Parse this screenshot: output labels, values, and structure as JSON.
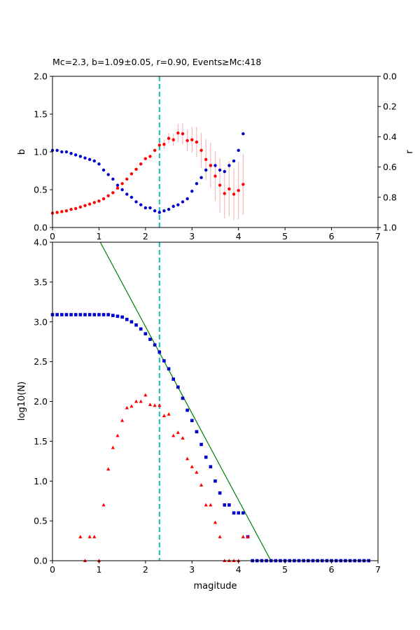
{
  "chart_data": [
    {
      "type": "scatter",
      "title": "Mc=2.3, b=1.09±0.05, r=0.90, Events≥Mc:418",
      "xlabel": "",
      "ylabel": "b",
      "ylabel_right": "r",
      "xlim": [
        0,
        7
      ],
      "ylim": [
        0,
        2
      ],
      "ylim_right": [
        1,
        0
      ],
      "xticks": [
        "0",
        "1",
        "2",
        "3",
        "4",
        "5",
        "6",
        "7"
      ],
      "yticks": [
        "0.0",
        "0.5",
        "1.0",
        "1.5",
        "2.0"
      ],
      "yticks_right": [
        "0.0",
        "0.2",
        "0.4",
        "0.6",
        "0.8",
        "1.0"
      ],
      "grid": false,
      "mc_line": 2.3,
      "colors": {
        "b": "#ff0000",
        "r": "#0000cc",
        "errorbar": "#f4b8b8",
        "mc": "#1fc4b4"
      },
      "series": [
        {
          "axis": "left",
          "x": [
            0.0,
            0.1,
            0.2,
            0.3,
            0.4,
            0.5,
            0.6,
            0.7,
            0.8,
            0.9,
            1.0,
            1.1,
            1.2,
            1.3,
            1.4,
            1.5,
            1.6,
            1.7,
            1.8,
            1.9,
            2.0,
            2.1,
            2.2,
            2.3,
            2.4,
            2.5,
            2.6,
            2.7,
            2.8,
            2.9,
            3.0,
            3.1,
            3.2,
            3.3,
            3.4,
            3.5,
            3.6,
            3.7,
            3.8,
            3.9,
            4.0,
            4.1
          ],
          "values": [
            0.19,
            0.2,
            0.21,
            0.22,
            0.24,
            0.25,
            0.27,
            0.29,
            0.31,
            0.33,
            0.35,
            0.38,
            0.42,
            0.46,
            0.52,
            0.58,
            0.64,
            0.71,
            0.77,
            0.84,
            0.91,
            0.94,
            1.02,
            1.09,
            1.1,
            1.18,
            1.16,
            1.25,
            1.24,
            1.15,
            1.16,
            1.13,
            1.02,
            0.9,
            0.82,
            0.68,
            0.56,
            0.45,
            0.51,
            0.44,
            0.49,
            0.57
          ],
          "err": [
            0,
            0,
            0,
            0,
            0,
            0,
            0,
            0,
            0,
            0,
            0,
            0,
            0,
            0,
            0,
            0,
            0,
            0,
            0,
            0,
            0,
            0,
            0,
            0.05,
            0.06,
            0.07,
            0.08,
            0.12,
            0.14,
            0.14,
            0.17,
            0.2,
            0.23,
            0.27,
            0.3,
            0.33,
            0.36,
            0.33,
            0.36,
            0.34,
            0.38,
            0.4
          ]
        },
        {
          "axis": "right",
          "x": [
            0.0,
            0.1,
            0.2,
            0.3,
            0.4,
            0.5,
            0.6,
            0.7,
            0.8,
            0.9,
            1.0,
            1.1,
            1.2,
            1.3,
            1.4,
            1.5,
            1.6,
            1.7,
            1.8,
            1.9,
            2.0,
            2.1,
            2.2,
            2.3,
            2.4,
            2.5,
            2.6,
            2.7,
            2.8,
            2.9,
            3.0,
            3.1,
            3.2,
            3.3,
            3.4,
            3.5,
            3.6,
            3.7,
            3.8,
            3.9,
            4.0,
            4.1
          ],
          "values": [
            0.49,
            0.49,
            0.5,
            0.5,
            0.51,
            0.52,
            0.53,
            0.54,
            0.55,
            0.56,
            0.58,
            0.62,
            0.65,
            0.68,
            0.72,
            0.75,
            0.78,
            0.8,
            0.83,
            0.85,
            0.87,
            0.87,
            0.89,
            0.9,
            0.89,
            0.88,
            0.86,
            0.85,
            0.83,
            0.81,
            0.76,
            0.71,
            0.67,
            0.62,
            0.59,
            0.59,
            0.62,
            0.63,
            0.59,
            0.56,
            0.49,
            0.38
          ]
        }
      ]
    },
    {
      "type": "scatter",
      "title": "",
      "xlabel": "magitude",
      "ylabel": "log10(N)",
      "xlim": [
        0,
        7
      ],
      "ylim": [
        0,
        4
      ],
      "xticks": [
        "0",
        "1",
        "2",
        "3",
        "4",
        "5",
        "6",
        "7"
      ],
      "yticks": [
        "0.0",
        "0.5",
        "1.0",
        "1.5",
        "2.0",
        "2.5",
        "3.0",
        "3.5",
        "4.0"
      ],
      "grid": false,
      "mc_line": 2.3,
      "colors": {
        "cumulative": "#0000cc",
        "non_cumulative": "#ff0000",
        "fit": "#008000",
        "mc": "#1fc4b4"
      },
      "fit_line": {
        "a": 5.12,
        "b": 1.09
      },
      "series": [
        {
          "marker": "square",
          "x": [
            0.0,
            0.1,
            0.2,
            0.3,
            0.4,
            0.5,
            0.6,
            0.7,
            0.8,
            0.9,
            1.0,
            1.1,
            1.2,
            1.3,
            1.4,
            1.5,
            1.6,
            1.7,
            1.8,
            1.9,
            2.0,
            2.1,
            2.2,
            2.3,
            2.4,
            2.5,
            2.6,
            2.7,
            2.8,
            2.9,
            3.0,
            3.1,
            3.2,
            3.3,
            3.4,
            3.5,
            3.6,
            3.7,
            3.8,
            3.9,
            4.0,
            4.1,
            4.2,
            4.3,
            4.4,
            4.5,
            4.6,
            4.7,
            4.8,
            4.9,
            5.0,
            5.1,
            5.2,
            5.3,
            5.4,
            5.5,
            5.6,
            5.7,
            5.8,
            5.9,
            6.0,
            6.1,
            6.2,
            6.3,
            6.4,
            6.5,
            6.6,
            6.7,
            6.8
          ],
          "values": [
            3.09,
            3.09,
            3.09,
            3.09,
            3.09,
            3.09,
            3.09,
            3.09,
            3.09,
            3.09,
            3.09,
            3.09,
            3.09,
            3.08,
            3.07,
            3.06,
            3.03,
            3.0,
            2.96,
            2.91,
            2.85,
            2.78,
            2.71,
            2.62,
            2.51,
            2.41,
            2.28,
            2.18,
            2.04,
            1.89,
            1.76,
            1.62,
            1.46,
            1.3,
            1.18,
            1.0,
            0.85,
            0.7,
            0.7,
            0.6,
            0.6,
            0.6,
            0.3,
            0,
            0,
            0,
            0,
            0,
            0,
            0,
            0,
            0,
            0,
            0,
            0,
            0,
            0,
            0,
            0,
            0,
            0,
            0,
            0,
            0,
            0,
            0,
            0,
            0,
            0
          ]
        },
        {
          "marker": "triangle",
          "x": [
            0.6,
            0.7,
            0.8,
            0.9,
            1.0,
            1.1,
            1.2,
            1.3,
            1.4,
            1.5,
            1.6,
            1.7,
            1.8,
            1.9,
            2.0,
            2.1,
            2.2,
            2.3,
            2.4,
            2.5,
            2.6,
            2.7,
            2.8,
            2.9,
            3.0,
            3.1,
            3.2,
            3.3,
            3.4,
            3.5,
            3.6,
            3.7,
            3.8,
            3.9,
            4.0,
            4.1,
            4.2
          ],
          "values": [
            0.3,
            0,
            0.3,
            0.3,
            0,
            0.7,
            1.15,
            1.42,
            1.57,
            1.76,
            1.92,
            1.94,
            2.0,
            2.0,
            2.08,
            1.96,
            1.95,
            1.95,
            1.82,
            1.84,
            1.57,
            1.61,
            1.54,
            1.28,
            1.18,
            1.11,
            0.95,
            0.7,
            0.7,
            0.48,
            0.3,
            0,
            0,
            0,
            0,
            0.3,
            0.3
          ]
        }
      ]
    }
  ]
}
